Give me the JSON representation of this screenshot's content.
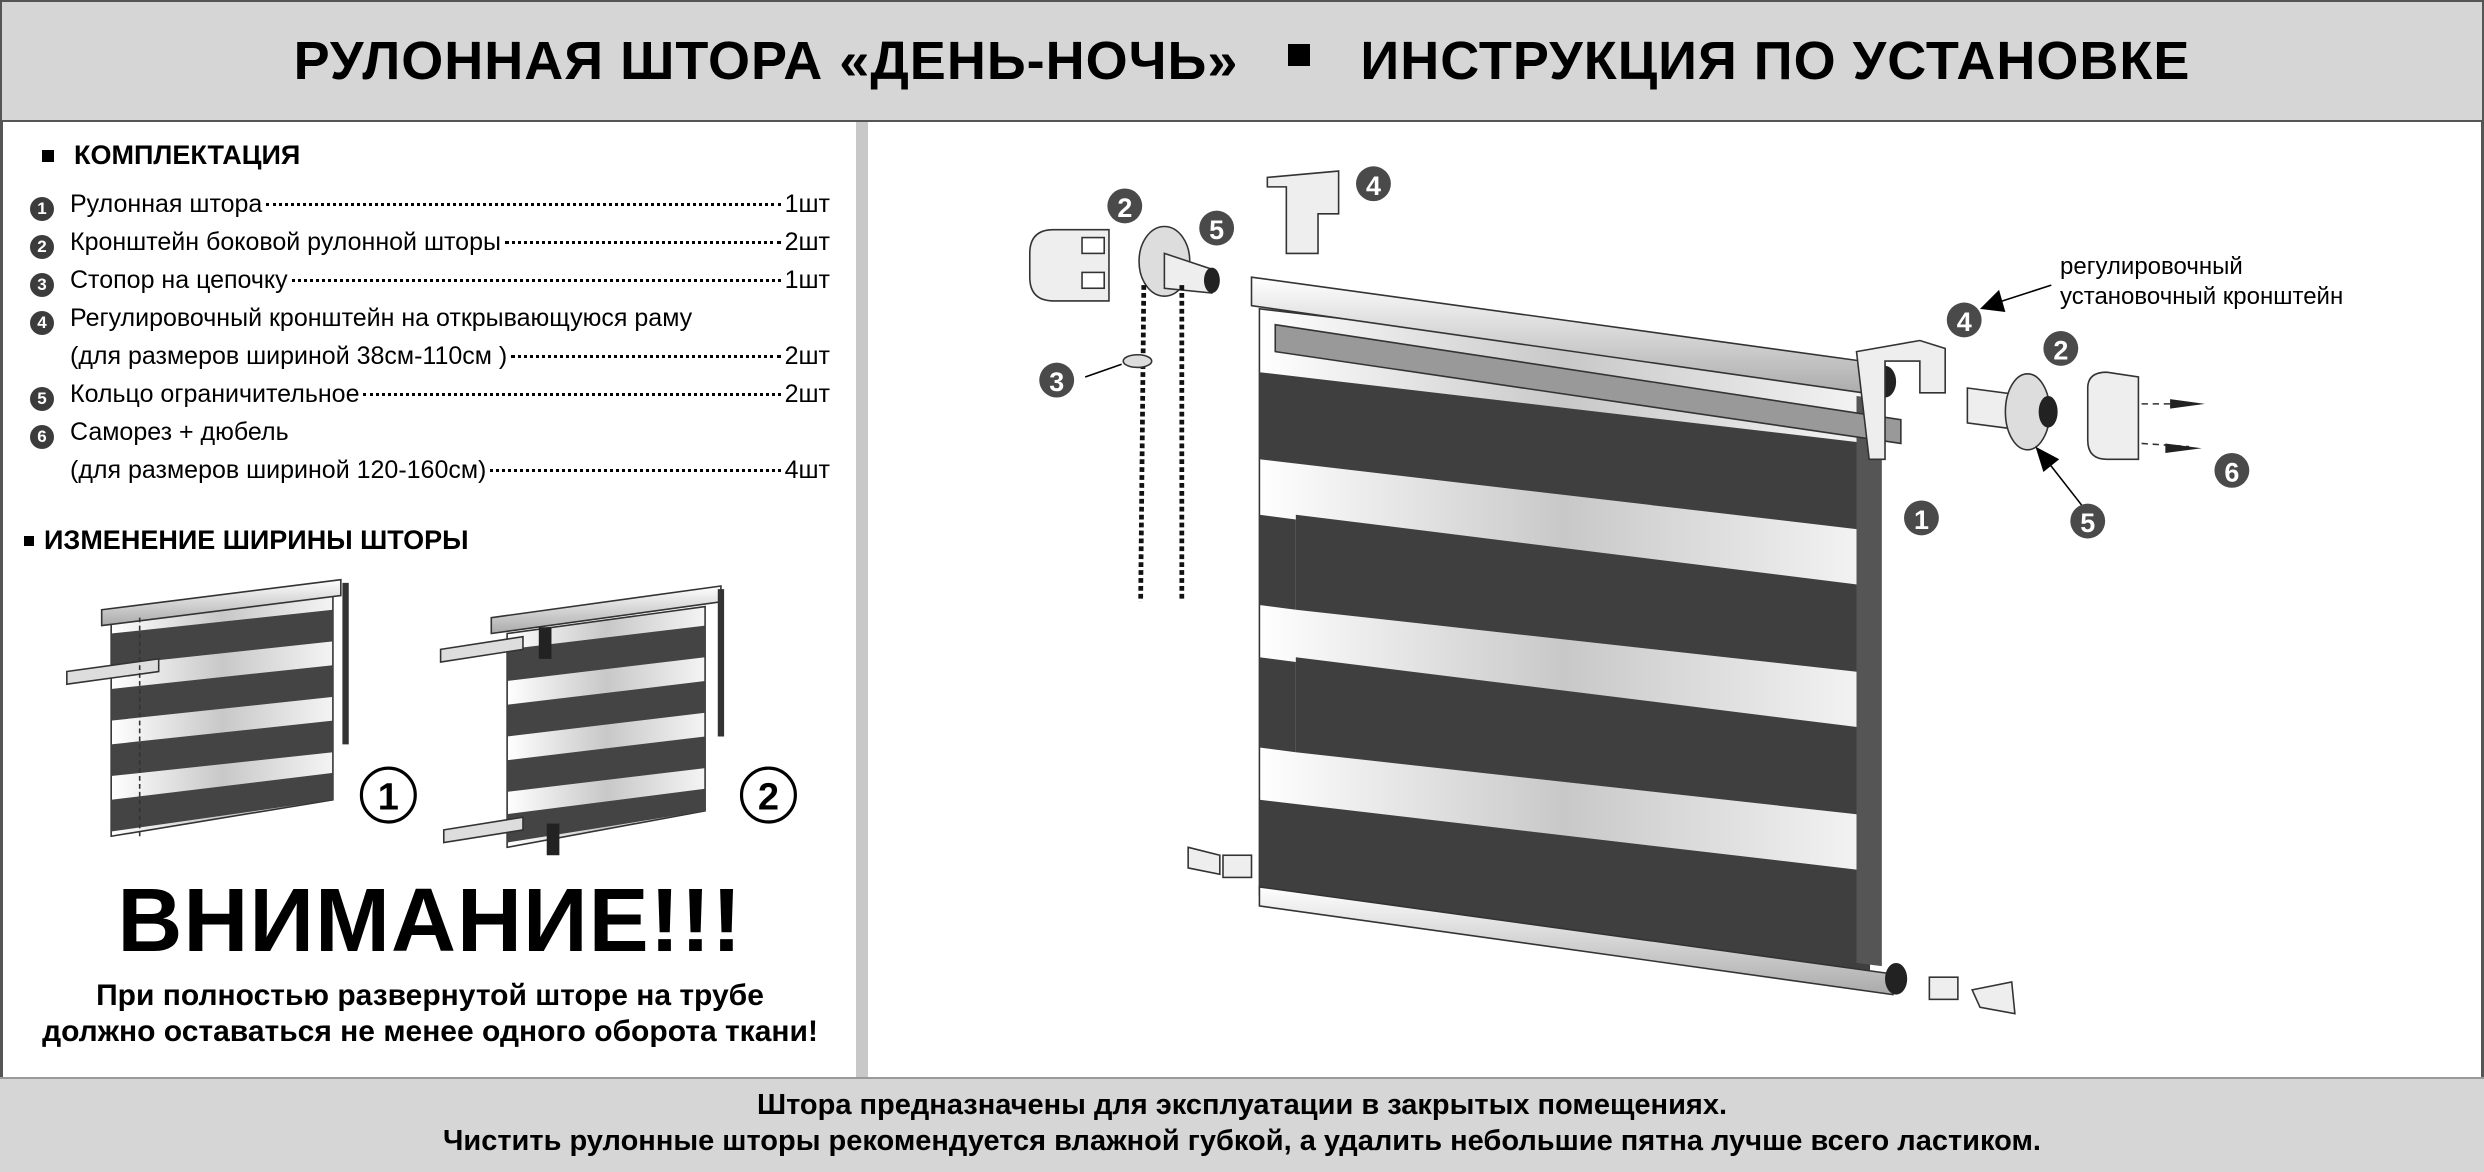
{
  "header": {
    "title_left": "РУЛОННАЯ ШТОРА «ДЕНЬ-НОЧЬ»",
    "title_right": "ИНСТРУКЦИЯ ПО УСТАНОВКЕ"
  },
  "kit": {
    "heading": "КОМПЛЕКТАЦИЯ",
    "items": [
      {
        "n": "1",
        "name": "Рулонная штора",
        "qty": "1шт"
      },
      {
        "n": "2",
        "name": "Кронштейн боковой рулонной шторы",
        "qty": "2шт"
      },
      {
        "n": "3",
        "name": "Стопор на цепочку",
        "qty": "1шт"
      },
      {
        "n": "4",
        "name": "Регулировочный кронштейн на открывающуюся раму",
        "sub": "(для размеров шириной 38см-110см )",
        "qty": "2шт"
      },
      {
        "n": "5",
        "name": "Кольцо ограничительное",
        "qty": "2шт"
      },
      {
        "n": "6",
        "name": "Саморез + дюбель",
        "sub": "(для размеров шириной 120-160см)",
        "qty": "4шт"
      }
    ]
  },
  "width_change": {
    "heading": "ИЗМЕНЕНИЕ ШИРИНЫ ШТОРЫ",
    "step1": "1",
    "step2": "2"
  },
  "attention": {
    "title": "ВНИМАНИЕ!!!",
    "line1": "При полностью развернутой шторе на трубе",
    "line2": "должно оставаться не менее одного оборота ткани!"
  },
  "diagram": {
    "callout": {
      "line1": "регулировочный",
      "line2": "установочный кронштейн"
    },
    "labels": [
      "2",
      "5",
      "4",
      "3",
      "4",
      "2",
      "1",
      "5",
      "6"
    ],
    "colors": {
      "fabric_dark": "#3f3f3f",
      "badge": "#4a4a4a"
    }
  },
  "footer": {
    "line1": "Штора предназначены для эксплуатации в закрытых помещениях.",
    "line2": "Чистить рулонные шторы рекомендуется влажной губкой, а удалить небольшие пятна  лучше всего ластиком."
  }
}
